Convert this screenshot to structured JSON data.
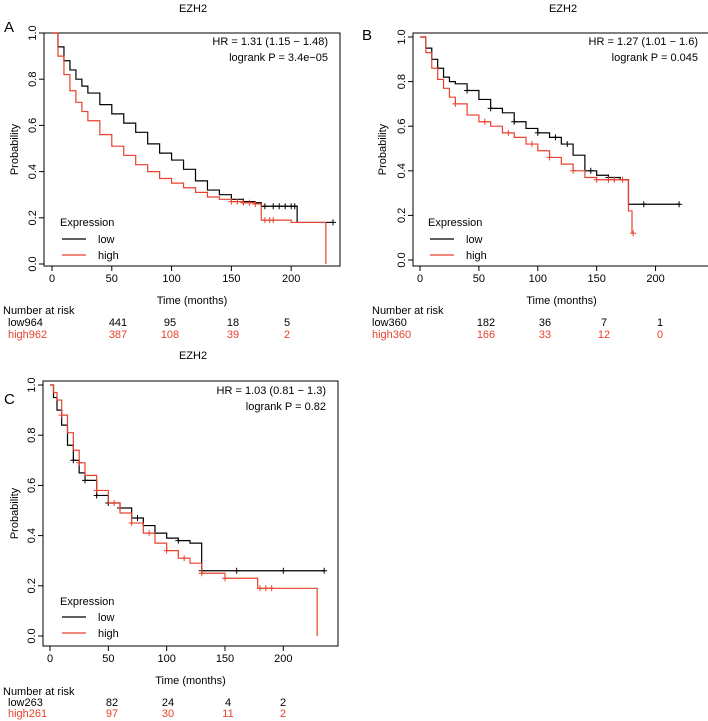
{
  "colors": {
    "low": "#000000",
    "high": "#e8412c",
    "axis": "#000000"
  },
  "chart_data": [
    {
      "panel_label": "A",
      "type": "line",
      "title": "EZH2",
      "xlabel": "Time (months)",
      "ylabel": "Probability",
      "xlim": [
        0,
        240
      ],
      "ylim": [
        0,
        1
      ],
      "xticks": [
        0,
        50,
        100,
        150,
        200
      ],
      "yticks": [
        0.0,
        0.2,
        0.4,
        0.6,
        0.8,
        1.0
      ],
      "xtick_labels": [
        "0",
        "50",
        "100",
        "150",
        "200"
      ],
      "ytick_labels": [
        "0.0",
        "0.2",
        "0.4",
        "0.6",
        "0.8",
        "1.0"
      ],
      "hr_text": "HR = 1.31 (1.15 − 1.48)",
      "logrank_text": "logrank P = 3.4e−05",
      "legend": {
        "title": "Expression",
        "items": [
          "low",
          "high"
        ],
        "placement": "bottom-left"
      },
      "series": [
        {
          "name": "low",
          "x": [
            0,
            5,
            10,
            15,
            20,
            25,
            30,
            40,
            50,
            60,
            70,
            80,
            90,
            100,
            110,
            120,
            130,
            140,
            150,
            160,
            170,
            175,
            180,
            200,
            205,
            235
          ],
          "y": [
            1.0,
            0.94,
            0.88,
            0.84,
            0.8,
            0.77,
            0.74,
            0.69,
            0.65,
            0.61,
            0.57,
            0.52,
            0.48,
            0.45,
            0.41,
            0.36,
            0.32,
            0.3,
            0.28,
            0.27,
            0.265,
            0.25,
            0.25,
            0.25,
            0.18,
            0.18
          ],
          "censor_x": [
            160,
            178,
            185,
            190,
            195,
            200,
            203,
            235
          ]
        },
        {
          "name": "high",
          "x": [
            0,
            5,
            10,
            15,
            20,
            25,
            30,
            40,
            50,
            60,
            70,
            80,
            90,
            100,
            110,
            120,
            130,
            140,
            150,
            160,
            170,
            175,
            180,
            200,
            225,
            228,
            229
          ],
          "y": [
            1.0,
            0.9,
            0.82,
            0.75,
            0.7,
            0.66,
            0.62,
            0.56,
            0.51,
            0.47,
            0.43,
            0.4,
            0.37,
            0.35,
            0.33,
            0.31,
            0.29,
            0.28,
            0.27,
            0.265,
            0.26,
            0.19,
            0.19,
            0.18,
            0.18,
            0.18,
            0.0
          ],
          "censor_x": [
            150,
            155,
            160,
            165,
            170,
            178,
            182,
            185
          ]
        }
      ],
      "risk_table": {
        "heading": "Number at risk",
        "rows": [
          {
            "label": "low964",
            "counts": [
              "441",
              "95",
              "18",
              "5"
            ]
          },
          {
            "label": "high962",
            "counts": [
              "387",
              "108",
              "39",
              "2"
            ]
          }
        ]
      }
    },
    {
      "panel_label": "B",
      "type": "line",
      "title": "EZH2",
      "xlabel": "Time (months)",
      "ylabel": "Probability",
      "xlim": [
        0,
        225
      ],
      "ylim": [
        0,
        1
      ],
      "xticks": [
        0,
        50,
        100,
        150,
        200
      ],
      "yticks": [
        0.0,
        0.2,
        0.4,
        0.6,
        0.8,
        1.0
      ],
      "xtick_labels": [
        "0",
        "50",
        "100",
        "150",
        "200"
      ],
      "ytick_labels": [
        "0.0",
        "0.2",
        "0.4",
        "0.6",
        "0.8",
        "1.0"
      ],
      "hr_text": "HR = 1.27 (1.01 − 1.6)",
      "logrank_text": "logrank P = 0.045",
      "legend": {
        "title": "Expression",
        "items": [
          "low",
          "high"
        ],
        "placement": "bottom-left"
      },
      "series": [
        {
          "name": "low",
          "x": [
            0,
            5,
            10,
            15,
            20,
            25,
            30,
            40,
            50,
            60,
            70,
            80,
            90,
            100,
            110,
            120,
            130,
            140,
            150,
            160,
            170,
            175,
            177,
            220
          ],
          "y": [
            1.0,
            0.95,
            0.9,
            0.86,
            0.82,
            0.8,
            0.79,
            0.76,
            0.72,
            0.68,
            0.66,
            0.62,
            0.59,
            0.57,
            0.55,
            0.52,
            0.47,
            0.4,
            0.38,
            0.37,
            0.36,
            0.36,
            0.25,
            0.25
          ],
          "censor_x": [
            40,
            60,
            80,
            100,
            115,
            125,
            145,
            160,
            190,
            220
          ]
        },
        {
          "name": "high",
          "x": [
            0,
            5,
            10,
            15,
            20,
            25,
            30,
            40,
            50,
            60,
            70,
            80,
            90,
            100,
            110,
            120,
            130,
            140,
            150,
            160,
            170,
            175,
            177,
            180
          ],
          "y": [
            1.0,
            0.93,
            0.86,
            0.81,
            0.77,
            0.73,
            0.7,
            0.65,
            0.62,
            0.6,
            0.57,
            0.55,
            0.52,
            0.49,
            0.46,
            0.43,
            0.4,
            0.37,
            0.36,
            0.36,
            0.36,
            0.36,
            0.22,
            0.12
          ],
          "censor_x": [
            30,
            55,
            75,
            95,
            110,
            130,
            150,
            160,
            165,
            172,
            181
          ]
        }
      ],
      "risk_table": {
        "heading": "Number at risk",
        "rows": [
          {
            "label": "low360",
            "counts": [
              "182",
              "36",
              "7",
              "1"
            ]
          },
          {
            "label": "high360",
            "counts": [
              "166",
              "33",
              "12",
              "0"
            ]
          }
        ]
      }
    },
    {
      "panel_label": "C",
      "type": "line",
      "title": "EZH2",
      "xlabel": "Time (months)",
      "ylabel": "Probability",
      "xlim": [
        0,
        240
      ],
      "ylim": [
        0,
        1
      ],
      "xticks": [
        0,
        50,
        100,
        150,
        200
      ],
      "yticks": [
        0.0,
        0.2,
        0.4,
        0.6,
        0.8,
        1.0
      ],
      "xtick_labels": [
        "0",
        "50",
        "100",
        "150",
        "200"
      ],
      "ytick_labels": [
        "0.0",
        "0.2",
        "0.4",
        "0.6",
        "0.8",
        "1.0"
      ],
      "hr_text": "HR = 1.03 (0.81 − 1.3)",
      "logrank_text": "logrank P = 0.82",
      "legend": {
        "title": "Expression",
        "items": [
          "low",
          "high"
        ],
        "placement": "bottom-left"
      },
      "series": [
        {
          "name": "low",
          "x": [
            0,
            3,
            6,
            10,
            15,
            20,
            25,
            30,
            40,
            50,
            60,
            70,
            80,
            90,
            100,
            110,
            120,
            130,
            150,
            200,
            235
          ],
          "y": [
            1.0,
            0.95,
            0.9,
            0.84,
            0.76,
            0.7,
            0.65,
            0.62,
            0.56,
            0.53,
            0.51,
            0.47,
            0.44,
            0.41,
            0.39,
            0.38,
            0.37,
            0.26,
            0.26,
            0.26,
            0.26
          ],
          "censor_x": [
            20,
            30,
            40,
            50,
            60,
            75,
            90,
            110,
            130,
            160,
            200,
            235
          ]
        },
        {
          "name": "high",
          "x": [
            0,
            3,
            6,
            10,
            15,
            20,
            25,
            30,
            40,
            50,
            60,
            70,
            80,
            90,
            100,
            110,
            120,
            130,
            150,
            175,
            178,
            200,
            220,
            228,
            229
          ],
          "y": [
            1.0,
            0.97,
            0.94,
            0.88,
            0.81,
            0.74,
            0.69,
            0.64,
            0.58,
            0.53,
            0.49,
            0.45,
            0.41,
            0.37,
            0.34,
            0.31,
            0.29,
            0.25,
            0.23,
            0.23,
            0.19,
            0.19,
            0.19,
            0.19,
            0.0
          ],
          "censor_x": [
            10,
            25,
            40,
            55,
            70,
            85,
            100,
            115,
            130,
            150,
            180,
            185,
            190
          ]
        }
      ],
      "risk_table": {
        "heading": "Number at risk",
        "rows": [
          {
            "label": "low263",
            "counts": [
              "82",
              "24",
              "4",
              "2"
            ]
          },
          {
            "label": "high261",
            "counts": [
              "97",
              "30",
              "11",
              "2"
            ]
          }
        ]
      }
    }
  ]
}
